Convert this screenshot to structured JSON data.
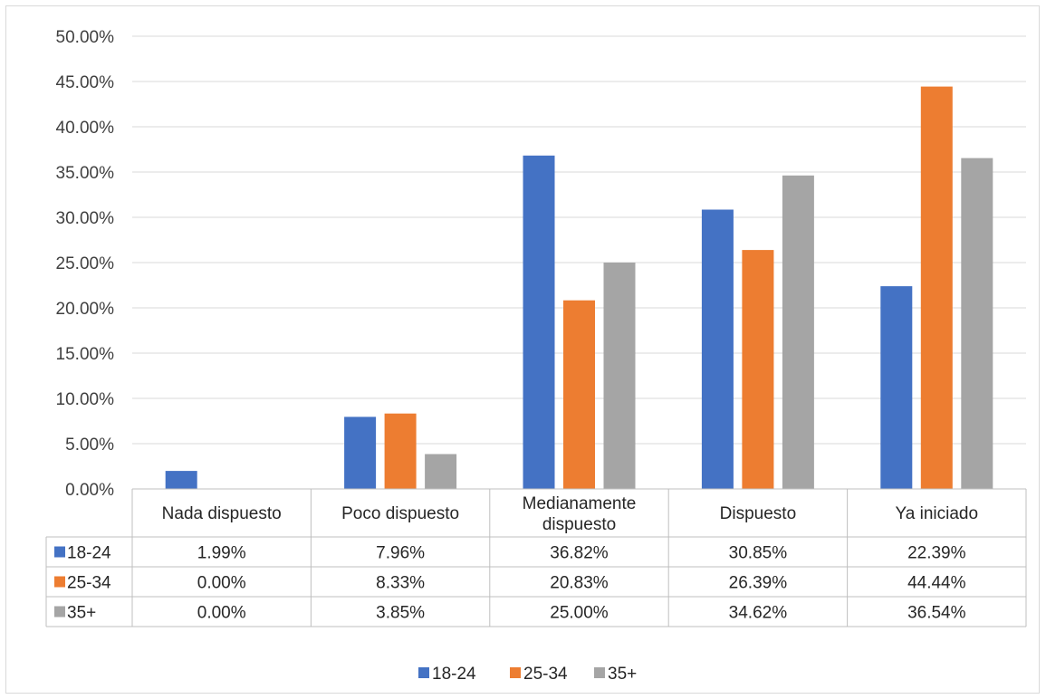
{
  "chart_data": {
    "type": "bar",
    "categories": [
      "Nada dispuesto",
      "Poco dispuesto",
      "Medianamente dispuesto",
      "Dispuesto",
      "Ya iniciado"
    ],
    "series": [
      {
        "name": "18-24",
        "color": "#4472c4",
        "values": [
          1.99,
          7.96,
          36.82,
          30.85,
          22.39
        ],
        "labels": [
          "1.99%",
          "7.96%",
          "36.82%",
          "30.85%",
          "22.39%"
        ]
      },
      {
        "name": "25-34",
        "color": "#ed7d31",
        "values": [
          0.0,
          8.33,
          20.83,
          26.39,
          44.44
        ],
        "labels": [
          "0.00%",
          "8.33%",
          "20.83%",
          "26.39%",
          "44.44%"
        ]
      },
      {
        "name": "35+",
        "color": "#a5a5a5",
        "values": [
          0.0,
          3.85,
          25.0,
          34.62,
          36.54
        ],
        "labels": [
          "0.00%",
          "3.85%",
          "25.00%",
          "34.62%",
          "36.54%"
        ]
      }
    ],
    "ylim": [
      0,
      50
    ],
    "yticks": [
      "0.00%",
      "5.00%",
      "10.00%",
      "15.00%",
      "20.00%",
      "25.00%",
      "30.00%",
      "35.00%",
      "40.00%",
      "45.00%",
      "50.00%"
    ],
    "grid": true,
    "legend": "bottom",
    "data_table": true
  }
}
